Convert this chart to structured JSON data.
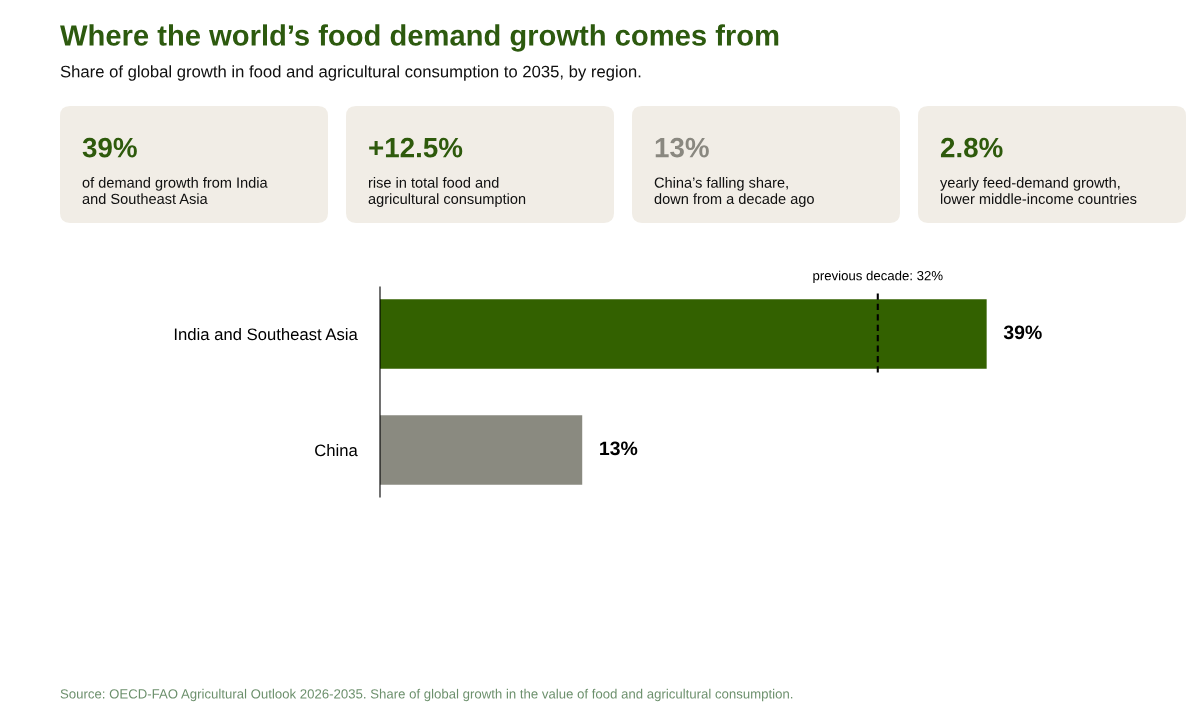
{
  "chart_data": [
    {
      "type": "other",
      "title": "Where the world’s food demand growth comes from",
      "subtitle": "Share of global growth in food and agricultural consumption to 2035, by region.",
      "annotations": [
        "39%",
        "of demand growth from India\nand Southeast Asia",
        "+12.5%",
        "rise in total food and\nagricultural consumption",
        "13%",
        "China’s falling share,\ndown from a decade ago",
        "2.8%",
        "yearly feed-demand growth,\nlower middle-income countries"
      ],
      "colors": [
        "#2e5a0c",
        "#2e5a0c",
        "#8a8880",
        "#2e5a0c"
      ]
    },
    {
      "type": "bar",
      "orientation": "horizontal",
      "categories": [
        "India and Southeast Asia",
        "China"
      ],
      "values": [
        39,
        13
      ],
      "colors": [
        "#336100",
        "#8a8a80"
      ],
      "value_labels": [
        "39%",
        "13%"
      ],
      "ref_lines": [
        {
          "axis": "x",
          "value": 32,
          "label": "previous decade: 32%",
          "line_style": "dashed",
          "color": "#000000"
        }
      ],
      "grid": false,
      "legend": false,
      "annotations": [
        "Source: OECD-FAO Agricultural Outlook 2026-2035. Share of global growth in the value of food and agricultural consumption."
      ]
    }
  ]
}
